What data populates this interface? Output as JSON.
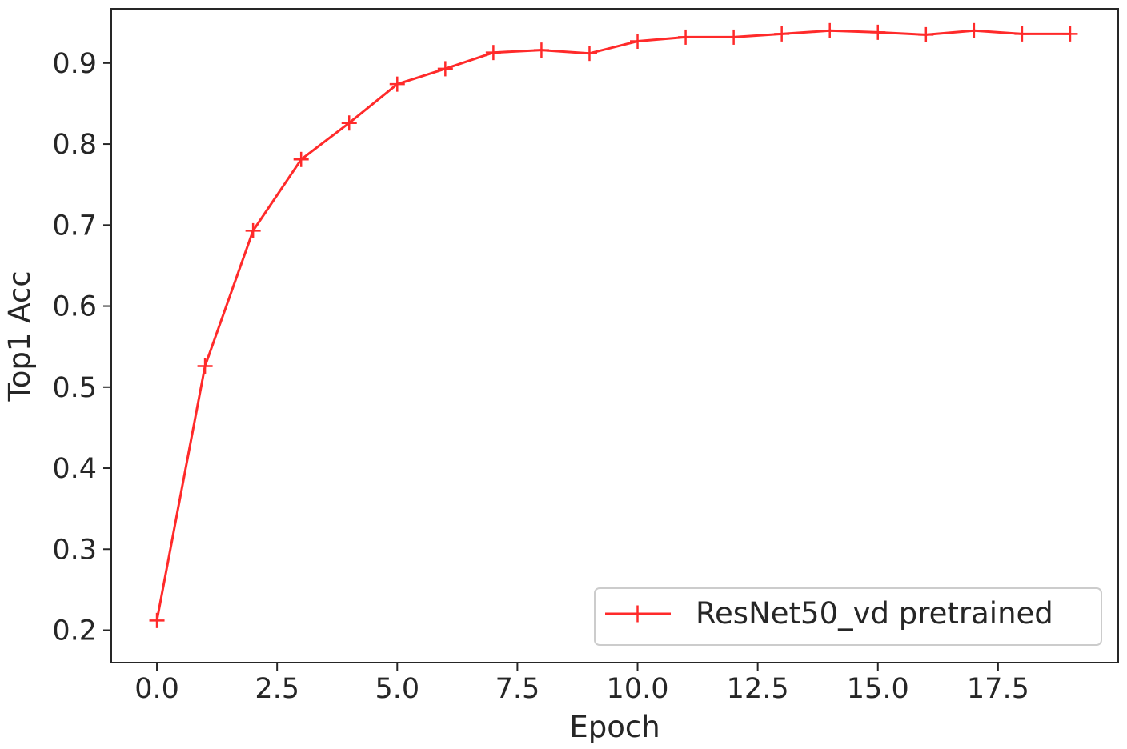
{
  "chart_data": {
    "type": "line",
    "title": "",
    "xlabel": "Epoch",
    "ylabel": "Top1 Acc",
    "xlim": [
      -0.95,
      20.0
    ],
    "ylim": [
      0.16,
      0.967
    ],
    "xticks": [
      0,
      2.5,
      5,
      7.5,
      10,
      12.5,
      15,
      17.5
    ],
    "xtick_labels": [
      "0.0",
      "2.5",
      "5.0",
      "7.5",
      "10.0",
      "12.5",
      "15.0",
      "17.5"
    ],
    "yticks": [
      0.2,
      0.3,
      0.4,
      0.5,
      0.6,
      0.7,
      0.8,
      0.9
    ],
    "ytick_labels": [
      "0.2",
      "0.3",
      "0.4",
      "0.5",
      "0.6",
      "0.7",
      "0.8",
      "0.9"
    ],
    "grid": false,
    "legend_position": "lower-right",
    "series": [
      {
        "name": "ResNet50_vd pretrained",
        "color": "#ff2a2a",
        "marker": "plus",
        "x": [
          0,
          1,
          2,
          3,
          4,
          5,
          6,
          7,
          8,
          9,
          10,
          11,
          12,
          13,
          14,
          15,
          16,
          17,
          18,
          19
        ],
        "y": [
          0.212,
          0.526,
          0.693,
          0.781,
          0.826,
          0.874,
          0.893,
          0.913,
          0.916,
          0.912,
          0.927,
          0.932,
          0.932,
          0.936,
          0.94,
          0.938,
          0.935,
          0.94,
          0.936,
          0.936
        ]
      }
    ]
  }
}
